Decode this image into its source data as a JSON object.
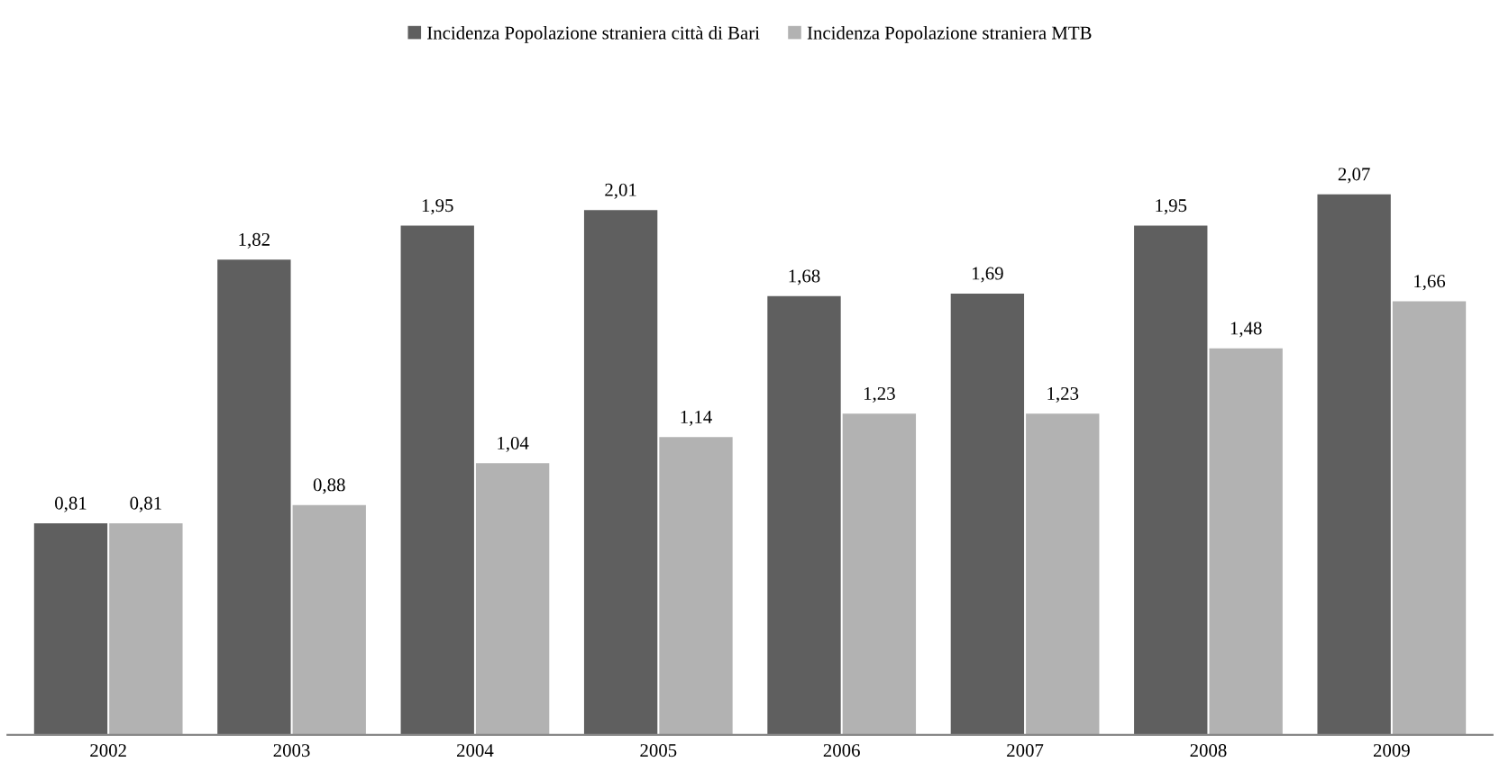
{
  "chart_data": {
    "type": "bar",
    "categories": [
      "2002",
      "2003",
      "2004",
      "2005",
      "2006",
      "2007",
      "2008",
      "2009"
    ],
    "series": [
      {
        "name": "Incidenza Popolazione straniera città di Bari",
        "color": "#5f5f5f",
        "values": [
          0.81,
          1.82,
          1.95,
          2.01,
          1.68,
          1.69,
          1.95,
          2.07
        ],
        "value_labels": [
          "0,81",
          "1,82",
          "1,95",
          "2,01",
          "1,68",
          "1,69",
          "1,95",
          "2,07"
        ]
      },
      {
        "name": "Incidenza Popolazione straniera MTB",
        "color": "#b2b2b2",
        "values": [
          0.81,
          0.88,
          1.04,
          1.14,
          1.23,
          1.23,
          1.48,
          1.66
        ],
        "value_labels": [
          "0,81",
          "0,88",
          "1,04",
          "1,14",
          "1,23",
          "1,23",
          "1,48",
          "1,66"
        ]
      }
    ],
    "legend": "top",
    "grid": false
  }
}
